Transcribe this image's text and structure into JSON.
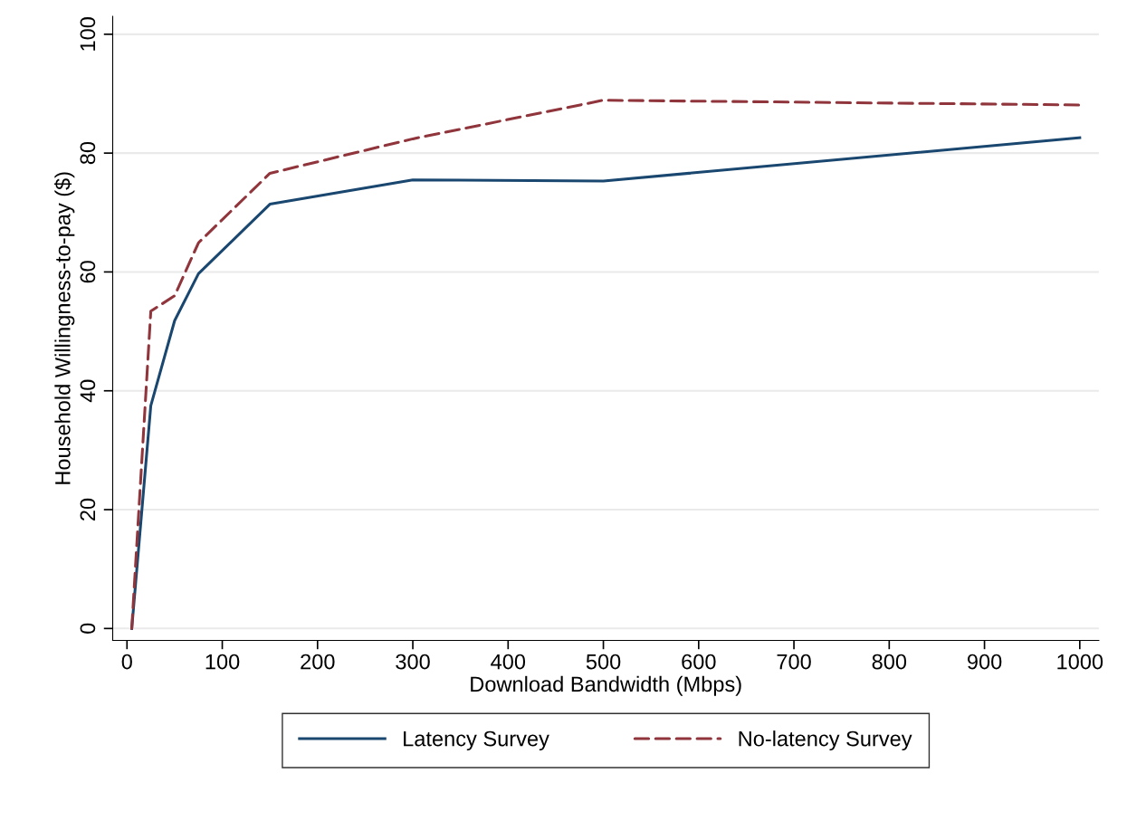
{
  "chart_data": {
    "type": "line",
    "xlabel": "Download Bandwidth (Mbps)",
    "ylabel": "Household Willingness-to-pay ($)",
    "x": [
      5,
      25,
      50,
      75,
      150,
      300,
      500,
      1000
    ],
    "series": [
      {
        "name": "Latency Survey",
        "color": "#1a476f",
        "line_style": "solid",
        "values": [
          0,
          37.5,
          51.8,
          59.7,
          71.4,
          75.5,
          75.3,
          82.6
        ]
      },
      {
        "name": "No-latency Survey",
        "color": "#90353b",
        "line_style": "dashed",
        "values": [
          0,
          53.4,
          56,
          64.9,
          76.6,
          82.4,
          88.9,
          88.1
        ]
      }
    ],
    "xlim": [
      -15,
      1020
    ],
    "ylim": [
      -2,
      103
    ],
    "xticks": [
      0,
      100,
      200,
      300,
      400,
      500,
      600,
      700,
      800,
      900,
      1000
    ],
    "yticks": [
      0,
      20,
      40,
      60,
      80,
      100
    ],
    "grid": "y",
    "legend": "bottom",
    "marker": "none"
  }
}
